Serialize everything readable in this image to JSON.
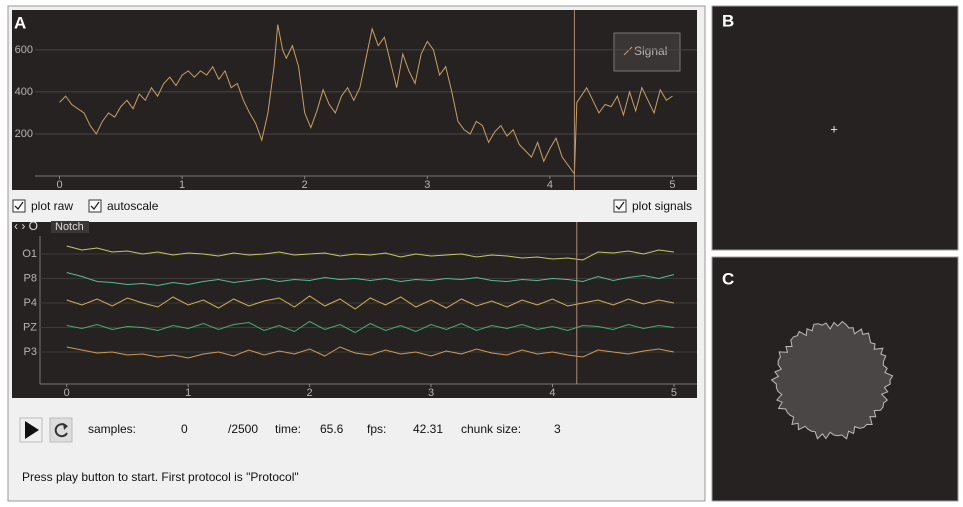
{
  "panel_a": {
    "label": "A",
    "signal_plot": {
      "xlim": [
        -0.2,
        5.2
      ],
      "ylim": [
        0,
        780
      ],
      "xticks": [
        0,
        1,
        2,
        3,
        4,
        5
      ],
      "yticks": [
        200,
        400,
        600
      ],
      "grid": true,
      "cursor_x": 4.2,
      "series": [
        {
          "name": "Signal",
          "color": "#c8a060",
          "x": [
            0,
            0.05,
            0.1,
            0.2,
            0.25,
            0.3,
            0.35,
            0.4,
            0.45,
            0.5,
            0.55,
            0.6,
            0.65,
            0.7,
            0.75,
            0.8,
            0.85,
            0.9,
            0.95,
            1,
            1.05,
            1.1,
            1.15,
            1.2,
            1.25,
            1.3,
            1.35,
            1.4,
            1.45,
            1.5,
            1.55,
            1.6,
            1.65,
            1.7,
            1.75,
            1.78,
            1.82,
            1.85,
            1.9,
            1.95,
            2,
            2.05,
            2.1,
            2.15,
            2.2,
            2.25,
            2.3,
            2.35,
            2.4,
            2.45,
            2.5,
            2.55,
            2.6,
            2.65,
            2.7,
            2.75,
            2.8,
            2.85,
            2.9,
            2.95,
            3,
            3.05,
            3.1,
            3.15,
            3.2,
            3.25,
            3.3,
            3.35,
            3.4,
            3.45,
            3.5,
            3.55,
            3.6,
            3.65,
            3.7,
            3.75,
            3.8,
            3.85,
            3.9,
            3.95,
            4,
            4.05,
            4.1,
            4.15,
            4.2,
            4.22,
            4.3,
            4.35,
            4.4,
            4.45,
            4.5,
            4.55,
            4.6,
            4.65,
            4.7,
            4.75,
            4.8,
            4.85,
            4.9,
            4.95,
            5
          ],
          "values": [
            350,
            380,
            340,
            300,
            240,
            200,
            260,
            300,
            280,
            330,
            360,
            320,
            390,
            360,
            420,
            380,
            440,
            470,
            430,
            480,
            500,
            470,
            500,
            480,
            520,
            460,
            500,
            420,
            440,
            360,
            300,
            250,
            170,
            300,
            520,
            720,
            600,
            560,
            620,
            520,
            300,
            230,
            310,
            410,
            340,
            300,
            380,
            420,
            360,
            420,
            560,
            700,
            620,
            660,
            540,
            420,
            580,
            500,
            440,
            580,
            640,
            600,
            480,
            520,
            400,
            260,
            220,
            200,
            260,
            240,
            160,
            210,
            240,
            190,
            220,
            150,
            120,
            90,
            160,
            70,
            130,
            180,
            90,
            50,
            10,
            350,
            420,
            360,
            300,
            340,
            330,
            380,
            290,
            400,
            310,
            420,
            360,
            300,
            410,
            360,
            380
          ]
        }
      ]
    },
    "checkboxes": [
      {
        "label": "plot raw",
        "checked": true
      },
      {
        "label": "autoscale",
        "checked": true
      },
      {
        "label": "plot signals",
        "checked": true
      }
    ],
    "channel_plot": {
      "filter": "Notch",
      "xlim": [
        -0.22,
        5.19
      ],
      "xticks": [
        0,
        1,
        2,
        3,
        4,
        5
      ],
      "cursor_x": 4.2,
      "x": [
        0,
        0.125,
        0.25,
        0.375,
        0.5,
        0.625,
        0.75,
        0.875,
        1,
        1.125,
        1.25,
        1.375,
        1.5,
        1.625,
        1.75,
        1.875,
        2,
        2.125,
        2.25,
        2.375,
        2.5,
        2.625,
        2.75,
        2.875,
        3,
        3.125,
        3.25,
        3.375,
        3.5,
        3.625,
        3.75,
        3.875,
        4,
        4.125,
        4.25,
        4.375,
        4.5,
        4.625,
        4.75,
        4.875,
        5
      ],
      "channels": [
        {
          "name": "O1",
          "color": "#c8c860",
          "values": [
            8,
            4,
            6,
            2,
            3,
            0,
            2,
            -1,
            1,
            0,
            -2,
            1,
            -1,
            0,
            2,
            -1,
            0,
            1,
            -2,
            0,
            -1,
            1,
            -3,
            0,
            -2,
            -1,
            0,
            -3,
            -1,
            -2,
            -4,
            -3,
            -5,
            -4,
            -6,
            2,
            1,
            3,
            0,
            4,
            2
          ]
        },
        {
          "name": "P8",
          "color": "#50c090",
          "values": [
            6,
            2,
            -3,
            -4,
            -6,
            -5,
            -7,
            -4,
            -6,
            -3,
            -1,
            -4,
            -2,
            0,
            -3,
            -1,
            -2,
            1,
            -1,
            0,
            -2,
            0,
            -3,
            -1,
            -2,
            0,
            -1,
            1,
            -2,
            -3,
            -1,
            -2,
            0,
            -1,
            -3,
            2,
            -2,
            1,
            3,
            0,
            4
          ]
        },
        {
          "name": "P4",
          "color": "#d0b050",
          "values": [
            3,
            -2,
            4,
            -3,
            5,
            0,
            -4,
            6,
            -2,
            3,
            -5,
            4,
            -3,
            2,
            5,
            -4,
            7,
            -3,
            4,
            -6,
            5,
            -2,
            6,
            -4,
            3,
            -5,
            4,
            -3,
            2,
            -4,
            3,
            -2,
            4,
            -3,
            0,
            3,
            -2,
            4,
            -1,
            3,
            0
          ]
        },
        {
          "name": "PZ",
          "color": "#40b070",
          "values": [
            2,
            -1,
            3,
            -2,
            1,
            0,
            -3,
            2,
            -1,
            4,
            -2,
            3,
            5,
            -3,
            2,
            -4,
            6,
            -2,
            3,
            -5,
            4,
            -3,
            2,
            -4,
            3,
            -2,
            4,
            -3,
            2,
            -1,
            3,
            -2,
            1,
            -3,
            2,
            1,
            -2,
            3,
            -1,
            2,
            0
          ]
        },
        {
          "name": "P3",
          "color": "#d09a50",
          "values": [
            5,
            2,
            -1,
            0,
            -3,
            -2,
            -5,
            -3,
            -6,
            -2,
            0,
            -4,
            2,
            -3,
            1,
            -2,
            3,
            -4,
            5,
            -1,
            -3,
            2,
            -2,
            0,
            -4,
            1,
            -2,
            3,
            -1,
            -3,
            2,
            -2,
            0,
            -3,
            -5,
            2,
            0,
            -2,
            1,
            3,
            0
          ]
        }
      ]
    },
    "status_bar": {
      "samples_label": "samples:",
      "samples": 0,
      "samples_total": "/2500",
      "time_label": "time:",
      "time": 65.6,
      "fps_label": "fps:",
      "fps": 42.31,
      "chunk_size_label": "chunk size:",
      "chunk_size": 3
    },
    "message": "Press play button to start. First protocol is \"Protocol\""
  },
  "panel_b": {
    "label": "B",
    "fixation_mark": "+"
  },
  "panel_c": {
    "label": "C"
  }
}
